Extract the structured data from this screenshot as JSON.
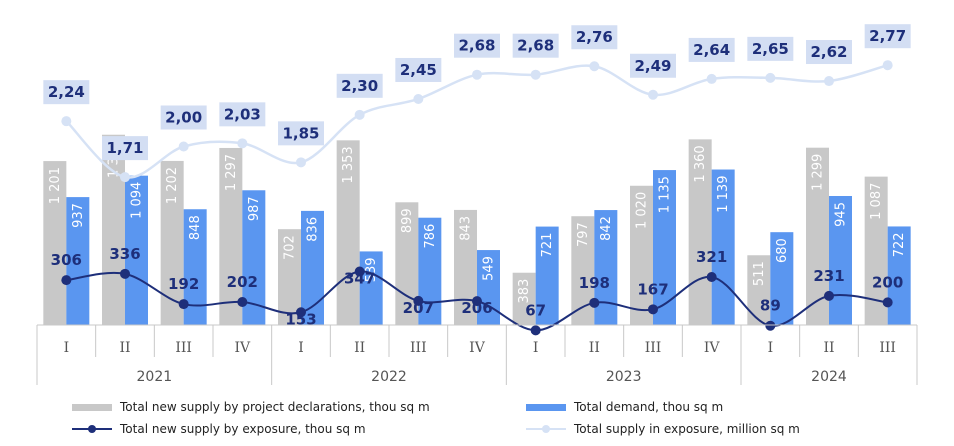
{
  "chart_data": {
    "type": "bar",
    "categories": [
      "I",
      "II",
      "III",
      "IV",
      "I",
      "II",
      "III",
      "IV",
      "I",
      "II",
      "III",
      "IV",
      "I",
      "II",
      "III"
    ],
    "years": [
      "2021",
      "2022",
      "2023",
      "2024"
    ],
    "series": [
      {
        "name": "Total new supply by project declarations, thou sq m",
        "kind": "bar",
        "values": [
          1201,
          1394,
          1202,
          1297,
          702,
          1353,
          899,
          843,
          383,
          797,
          1020,
          1360,
          511,
          1299,
          1087
        ],
        "labels": [
          "1 201",
          "1 394",
          "1 202",
          "1 297",
          "702",
          "1 353",
          "899",
          "843",
          "383",
          "797",
          "1 020",
          "1 360",
          "511",
          "1 299",
          "1 087"
        ]
      },
      {
        "name": "Total demand, thou sq m",
        "kind": "bar",
        "values": [
          937,
          1094,
          848,
          987,
          836,
          539,
          786,
          549,
          721,
          842,
          1135,
          1139,
          680,
          945,
          722
        ],
        "labels": [
          "937",
          "1 094",
          "848",
          "987",
          "836",
          "539",
          "786",
          "549",
          "721",
          "842",
          "1 135",
          "1 139",
          "680",
          "945",
          "722"
        ]
      },
      {
        "name": "Total new supply by exposure, thou sq m",
        "kind": "line",
        "values": [
          306,
          336,
          192,
          202,
          153,
          347,
          207,
          206,
          67,
          198,
          167,
          321,
          89,
          231,
          200
        ],
        "labels": [
          "306",
          "336",
          "192",
          "202",
          "153",
          "347",
          "207",
          "206",
          "67",
          "198",
          "167",
          "321",
          "89",
          "231",
          "200"
        ]
      },
      {
        "name": "Total supply in exposure, million sq m",
        "kind": "line",
        "values": [
          2.24,
          1.71,
          2.0,
          2.03,
          1.85,
          2.3,
          2.45,
          2.68,
          2.68,
          2.76,
          2.49,
          2.64,
          2.65,
          2.62,
          2.77
        ],
        "labels": [
          "2,24",
          "1,71",
          "2,00",
          "2,03",
          "1,85",
          "2,30",
          "2,45",
          "2,68",
          "2,68",
          "2,76",
          "2,49",
          "2,64",
          "2,65",
          "2,62",
          "2,77"
        ]
      }
    ],
    "colors": {
      "declarations": "#c8c8c8",
      "demand": "#5a96f0",
      "exposure_new": "#1e2f7a",
      "exposure_total": "#d6e2f5",
      "label_box": "#d3def3",
      "label_text": "#1e2f7a",
      "axis": "#c8c8c8"
    },
    "legend": [
      {
        "key": "declarations",
        "label": "Total new supply by project declarations, thou sq m"
      },
      {
        "key": "demand",
        "label": "Total demand, thou sq m"
      },
      {
        "key": "exposure_new",
        "label": "Total new supply by exposure, thou sq m"
      },
      {
        "key": "exposure_total",
        "label": "Total supply in exposure, million sq m"
      }
    ],
    "grid": false,
    "legend_position": "bottom"
  }
}
